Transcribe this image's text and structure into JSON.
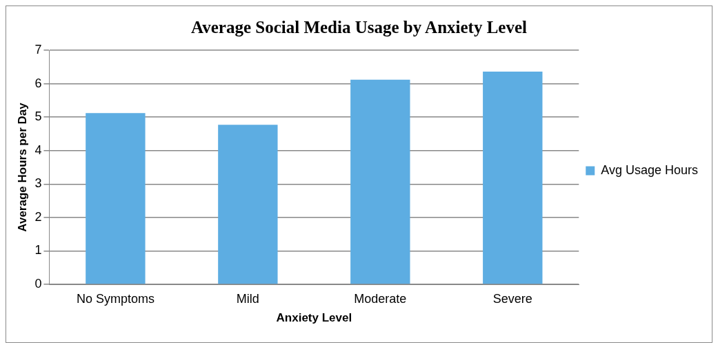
{
  "chart_data": {
    "type": "bar",
    "title": "Average Social Media Usage by Anxiety Level",
    "xlabel": "Anxiety Level",
    "ylabel": "Average Hours per Day",
    "categories": [
      "No Symptoms",
      "Mild",
      "Moderate",
      "Severe"
    ],
    "series": [
      {
        "name": "Avg Usage Hours",
        "color": "#5dade2",
        "values": [
          5.12,
          4.77,
          6.12,
          6.36
        ]
      }
    ],
    "ylim": [
      0,
      7
    ],
    "yticks": [
      0,
      1,
      2,
      3,
      4,
      5,
      6,
      7
    ],
    "grid": "y",
    "legend": "right"
  }
}
